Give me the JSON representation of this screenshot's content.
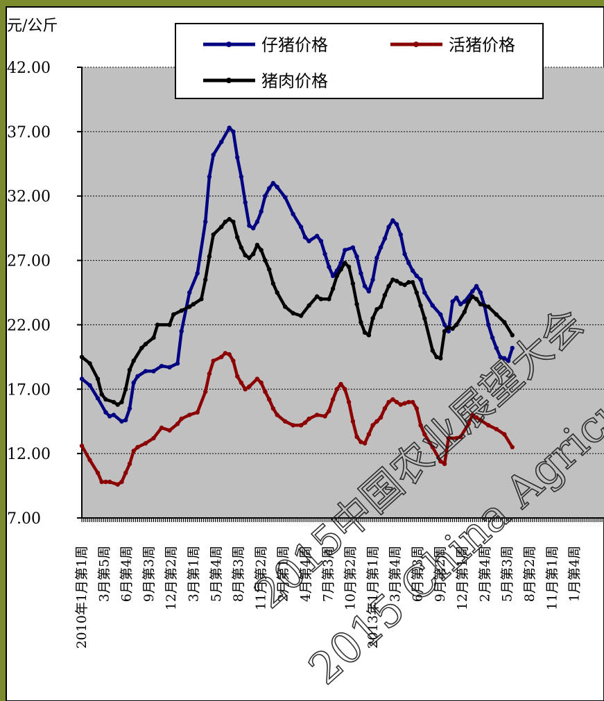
{
  "chart_data": {
    "type": "line",
    "unit_label": "元/公斤",
    "ylim": [
      7,
      42
    ],
    "yticks": [
      "7.00",
      "12.00",
      "17.00",
      "22.00",
      "27.00",
      "32.00",
      "37.00",
      "42.00"
    ],
    "grid": true,
    "legend_position": "top",
    "watermark": [
      "2015中国农业展望大会",
      "2015 China Agricultural Outlook"
    ],
    "x_tick_labels": [
      "2010年1月第1周",
      "3月第5周",
      "6月第4周",
      "9月第3周",
      "12月第2周",
      "3月第1周",
      "5月第4周",
      "8月第3周",
      "11月第2周",
      "2月第1周",
      "4月第4周",
      "7月第3周",
      "10月第2周",
      "2013年1月第1周",
      "3月第4周",
      "6月第3周",
      "9月第2周",
      "12月第1周",
      "2月第4周",
      "5月第3周",
      "8月第2周",
      "11月第1周",
      "1月第4周"
    ],
    "x_range": [
      0,
      262
    ],
    "series": [
      {
        "name": "仔猪价格",
        "color": "#000080",
        "points": [
          [
            0,
            17.8
          ],
          [
            4,
            17.3
          ],
          [
            8,
            16.3
          ],
          [
            12,
            15.2
          ],
          [
            14,
            14.9
          ],
          [
            16,
            15.0
          ],
          [
            20,
            14.5
          ],
          [
            22,
            14.6
          ],
          [
            24,
            15.5
          ],
          [
            26,
            17.5
          ],
          [
            28,
            18.0
          ],
          [
            32,
            18.4
          ],
          [
            36,
            18.4
          ],
          [
            40,
            18.8
          ],
          [
            44,
            18.7
          ],
          [
            48,
            19.0
          ],
          [
            50,
            21.5
          ],
          [
            54,
            24.5
          ],
          [
            58,
            26.0
          ],
          [
            62,
            30.0
          ],
          [
            64,
            33.5
          ],
          [
            66,
            35.2
          ],
          [
            70,
            36.2
          ],
          [
            74,
            37.3
          ],
          [
            76,
            37.0
          ],
          [
            78,
            35.0
          ],
          [
            80,
            33.5
          ],
          [
            82,
            31.5
          ],
          [
            84,
            29.7
          ],
          [
            86,
            29.5
          ],
          [
            88,
            30.0
          ],
          [
            90,
            30.8
          ],
          [
            92,
            32.0
          ],
          [
            94,
            32.6
          ],
          [
            96,
            33.0
          ],
          [
            98,
            32.7
          ],
          [
            102,
            31.9
          ],
          [
            106,
            30.6
          ],
          [
            110,
            29.6
          ],
          [
            112,
            28.8
          ],
          [
            114,
            28.5
          ],
          [
            118,
            28.9
          ],
          [
            120,
            28.5
          ],
          [
            122,
            27.5
          ],
          [
            124,
            26.5
          ],
          [
            126,
            25.8
          ],
          [
            128,
            26.2
          ],
          [
            130,
            26.8
          ],
          [
            132,
            27.8
          ],
          [
            136,
            28.0
          ],
          [
            138,
            27.3
          ],
          [
            140,
            26.0
          ],
          [
            142,
            25.0
          ],
          [
            144,
            24.6
          ],
          [
            146,
            25.5
          ],
          [
            148,
            27.2
          ],
          [
            150,
            28.0
          ],
          [
            152,
            28.7
          ],
          [
            154,
            29.6
          ],
          [
            156,
            30.1
          ],
          [
            158,
            29.8
          ],
          [
            160,
            29.0
          ],
          [
            162,
            27.5
          ],
          [
            164,
            26.8
          ],
          [
            166,
            26.2
          ],
          [
            168,
            25.8
          ],
          [
            170,
            25.5
          ],
          [
            172,
            24.5
          ],
          [
            176,
            23.5
          ],
          [
            180,
            22.8
          ],
          [
            182,
            22.0
          ],
          [
            184,
            21.5
          ],
          [
            186,
            23.8
          ],
          [
            188,
            24.1
          ],
          [
            190,
            23.6
          ],
          [
            192,
            23.8
          ],
          [
            196,
            24.6
          ],
          [
            198,
            25.0
          ],
          [
            200,
            24.5
          ],
          [
            202,
            23.5
          ],
          [
            204,
            22.0
          ],
          [
            206,
            21.0
          ],
          [
            208,
            20.2
          ],
          [
            210,
            19.5
          ],
          [
            212,
            19.4
          ],
          [
            214,
            19.2
          ],
          [
            216,
            20.2
          ]
        ]
      },
      {
        "name": "活猪价格",
        "color": "#8b0000",
        "points": [
          [
            0,
            12.6
          ],
          [
            4,
            11.5
          ],
          [
            8,
            10.5
          ],
          [
            10,
            9.8
          ],
          [
            12,
            9.8
          ],
          [
            14,
            9.8
          ],
          [
            18,
            9.6
          ],
          [
            20,
            9.8
          ],
          [
            22,
            10.5
          ],
          [
            24,
            11.2
          ],
          [
            26,
            12.2
          ],
          [
            28,
            12.5
          ],
          [
            32,
            12.8
          ],
          [
            36,
            13.2
          ],
          [
            40,
            14.0
          ],
          [
            44,
            13.8
          ],
          [
            48,
            14.3
          ],
          [
            50,
            14.7
          ],
          [
            54,
            15.0
          ],
          [
            58,
            15.2
          ],
          [
            62,
            16.8
          ],
          [
            64,
            18.2
          ],
          [
            66,
            19.2
          ],
          [
            70,
            19.5
          ],
          [
            72,
            19.8
          ],
          [
            74,
            19.7
          ],
          [
            76,
            19.2
          ],
          [
            78,
            18.0
          ],
          [
            80,
            17.5
          ],
          [
            82,
            17.0
          ],
          [
            84,
            17.2
          ],
          [
            88,
            17.8
          ],
          [
            90,
            17.5
          ],
          [
            92,
            16.8
          ],
          [
            94,
            16.2
          ],
          [
            96,
            15.5
          ],
          [
            98,
            15.0
          ],
          [
            102,
            14.5
          ],
          [
            106,
            14.2
          ],
          [
            110,
            14.2
          ],
          [
            112,
            14.4
          ],
          [
            114,
            14.7
          ],
          [
            118,
            15.0
          ],
          [
            122,
            14.9
          ],
          [
            124,
            15.3
          ],
          [
            126,
            16.2
          ],
          [
            128,
            17.0
          ],
          [
            130,
            17.4
          ],
          [
            132,
            17.0
          ],
          [
            134,
            16.0
          ],
          [
            136,
            14.5
          ],
          [
            138,
            13.3
          ],
          [
            140,
            12.9
          ],
          [
            142,
            12.8
          ],
          [
            144,
            13.5
          ],
          [
            146,
            14.2
          ],
          [
            148,
            14.5
          ],
          [
            150,
            14.8
          ],
          [
            152,
            15.5
          ],
          [
            154,
            16.0
          ],
          [
            156,
            16.2
          ],
          [
            158,
            16.0
          ],
          [
            160,
            15.8
          ],
          [
            162,
            15.9
          ],
          [
            164,
            16.0
          ],
          [
            166,
            16.0
          ],
          [
            168,
            15.5
          ],
          [
            170,
            14.2
          ],
          [
            172,
            13.5
          ],
          [
            176,
            12.5
          ],
          [
            180,
            11.4
          ],
          [
            182,
            11.2
          ],
          [
            184,
            13.2
          ],
          [
            188,
            13.2
          ],
          [
            190,
            13.3
          ],
          [
            194,
            14.3
          ],
          [
            196,
            15.0
          ],
          [
            198,
            14.8
          ],
          [
            200,
            14.6
          ],
          [
            204,
            14.2
          ],
          [
            208,
            13.9
          ],
          [
            212,
            13.5
          ],
          [
            216,
            12.5
          ]
        ]
      },
      {
        "name": "猪肉价格",
        "color": "#000000",
        "points": [
          [
            0,
            19.5
          ],
          [
            4,
            19.0
          ],
          [
            8,
            17.8
          ],
          [
            10,
            16.6
          ],
          [
            12,
            16.2
          ],
          [
            16,
            16.0
          ],
          [
            18,
            15.8
          ],
          [
            20,
            16.0
          ],
          [
            22,
            17.0
          ],
          [
            24,
            18.5
          ],
          [
            26,
            19.2
          ],
          [
            30,
            20.2
          ],
          [
            32,
            20.5
          ],
          [
            36,
            21.0
          ],
          [
            38,
            22.0
          ],
          [
            44,
            22.0
          ],
          [
            46,
            22.8
          ],
          [
            50,
            23.1
          ],
          [
            54,
            23.4
          ],
          [
            56,
            23.6
          ],
          [
            60,
            24.0
          ],
          [
            62,
            25.5
          ],
          [
            64,
            27.3
          ],
          [
            66,
            29.0
          ],
          [
            70,
            29.6
          ],
          [
            72,
            30.0
          ],
          [
            74,
            30.2
          ],
          [
            76,
            30.0
          ],
          [
            78,
            28.8
          ],
          [
            80,
            28.0
          ],
          [
            82,
            27.4
          ],
          [
            84,
            27.2
          ],
          [
            86,
            27.5
          ],
          [
            88,
            28.2
          ],
          [
            90,
            27.8
          ],
          [
            92,
            27.0
          ],
          [
            94,
            26.3
          ],
          [
            96,
            25.2
          ],
          [
            98,
            24.5
          ],
          [
            102,
            23.4
          ],
          [
            106,
            22.9
          ],
          [
            110,
            22.7
          ],
          [
            114,
            23.5
          ],
          [
            118,
            24.2
          ],
          [
            120,
            24.0
          ],
          [
            124,
            24.0
          ],
          [
            126,
            24.8
          ],
          [
            128,
            25.8
          ],
          [
            130,
            26.3
          ],
          [
            132,
            26.8
          ],
          [
            134,
            26.5
          ],
          [
            136,
            25.2
          ],
          [
            138,
            23.6
          ],
          [
            140,
            22.2
          ],
          [
            142,
            21.4
          ],
          [
            144,
            21.2
          ],
          [
            146,
            22.5
          ],
          [
            148,
            23.2
          ],
          [
            150,
            23.4
          ],
          [
            152,
            24.3
          ],
          [
            154,
            25.0
          ],
          [
            156,
            25.5
          ],
          [
            158,
            25.4
          ],
          [
            160,
            25.2
          ],
          [
            162,
            25.1
          ],
          [
            164,
            25.3
          ],
          [
            166,
            25.3
          ],
          [
            168,
            24.5
          ],
          [
            170,
            23.5
          ],
          [
            172,
            22.5
          ],
          [
            176,
            20.0
          ],
          [
            178,
            19.5
          ],
          [
            180,
            19.4
          ],
          [
            182,
            21.5
          ],
          [
            184,
            21.8
          ],
          [
            186,
            21.7
          ],
          [
            188,
            22.0
          ],
          [
            192,
            23.0
          ],
          [
            194,
            23.8
          ],
          [
            196,
            24.2
          ],
          [
            198,
            24.0
          ],
          [
            200,
            23.6
          ],
          [
            204,
            23.4
          ],
          [
            208,
            22.8
          ],
          [
            212,
            22.2
          ],
          [
            216,
            21.2
          ]
        ]
      }
    ]
  }
}
